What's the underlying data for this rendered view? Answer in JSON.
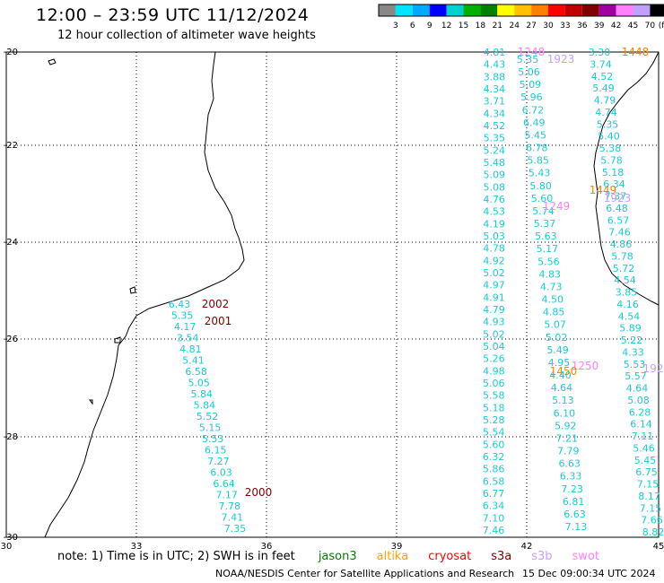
{
  "title": "12:00 – 23:59 UTC 11/12/2024",
  "subtitle": "12 hour collection of altimeter wave heights",
  "legend": {
    "unit": "(ft)",
    "ticks": [
      "3",
      "6",
      "9",
      "12",
      "15",
      "18",
      "21",
      "24",
      "27",
      "30",
      "33",
      "36",
      "39",
      "42",
      "45",
      "70"
    ],
    "colors": [
      "#888888",
      "#00e5ff",
      "#00aaff",
      "#0000ff",
      "#00d0d0",
      "#00b000",
      "#008000",
      "#ffff00",
      "#ffc000",
      "#ff8000",
      "#ff0000",
      "#c00000",
      "#800000",
      "#a000a0",
      "#ff80ff",
      "#c0a0ff",
      "#000000"
    ]
  },
  "axes": {
    "x_ticks": [
      "30",
      "33",
      "36",
      "39",
      "42",
      "45"
    ],
    "y_ticks": [
      "-20",
      "-22",
      "-24",
      "-26",
      "-28",
      "-30"
    ]
  },
  "track_left": {
    "times": [
      {
        "label": "2002",
        "color": "#800000"
      },
      {
        "label": "2001",
        "color": "#800000"
      },
      {
        "label": "2000",
        "color": "#800000"
      }
    ],
    "values": [
      "6.43",
      "5.35",
      "4.17",
      "3.54",
      "4.81",
      "5.41",
      "6.58",
      "5.05",
      "5.84",
      "5.84",
      "5.52",
      "5.15",
      "5.53",
      "6.15",
      "7.27",
      "6.03",
      "6.64",
      "7.17",
      "7.78",
      "7.41",
      "7.35"
    ]
  },
  "track_right": {
    "times": [
      {
        "label": "1248",
        "color": "#ff80ff"
      },
      {
        "label": "1249",
        "color": "#ff80ff"
      },
      {
        "label": "1250",
        "color": "#ff80ff"
      },
      {
        "label": "1448",
        "color": "#ff8000"
      },
      {
        "label": "1449",
        "color": "#ff8000"
      },
      {
        "label": "1450",
        "color": "#ff8000"
      },
      {
        "label": "1923",
        "color": "#c0a0ff"
      },
      {
        "label": "1923",
        "color": "#c0a0ff"
      },
      {
        "label": "192",
        "color": "#c0a0ff"
      }
    ],
    "col_a": [
      "4.81",
      "4.43",
      "3.88",
      "4.34",
      "3.71",
      "4.34",
      "4.52",
      "5.35",
      "5.24",
      "5.48",
      "5.09",
      "5.08",
      "4.76",
      "4.53",
      "4.19",
      "5.03",
      "4.78",
      "4.92",
      "5.02",
      "4.97",
      "4.91",
      "4.79",
      "4.93",
      "5.02",
      "5.04",
      "5.26",
      "4.98",
      "5.06",
      "5.58",
      "5.18",
      "5.28",
      "5.54",
      "5.60",
      "6.32",
      "5.86",
      "6.58",
      "6.77",
      "6.34",
      "7.10",
      "7.46"
    ],
    "col_b": [
      "5.35",
      "5.06",
      "5.09",
      "5.96",
      "6.72",
      "6.49",
      "5.45",
      "6.78",
      "5.85",
      "5.43",
      "5.80",
      "5.60",
      "5.74",
      "5.37",
      "5.63",
      "5.17",
      "5.56",
      "4.83",
      "4.73",
      "4.50",
      "4.85",
      "5.07",
      "5.02",
      "5.49",
      "4.95",
      "4.40",
      "4.64",
      "5.13",
      "6.10",
      "5.92",
      "7.21",
      "7.79",
      "6.63",
      "6.33",
      "7.23",
      "6.81",
      "6.63",
      "7.13"
    ],
    "col_c": [
      "3.30",
      "3.74",
      "4.52",
      "5.49",
      "4.79",
      "4.74",
      "5.35",
      "5.40",
      "5.38",
      "5.78",
      "5.18",
      "6.34",
      "7.37",
      "6.48",
      "6.57",
      "7.46",
      "4.86",
      "5.78",
      "5.72",
      "4.54",
      "3.85",
      "4.16",
      "4.54",
      "5.89",
      "5.22",
      "4.33",
      "5.53",
      "5.57",
      "4.64",
      "5.08",
      "6.28",
      "6.14",
      "7.11",
      "5.46",
      "5.45",
      "6.75",
      "7.15",
      "8.17",
      "7.15",
      "7.66",
      "8.82"
    ]
  },
  "note": {
    "prefix": "note:  1) Time is in UTC;  2) SWH is in feet",
    "sats": [
      {
        "name": "jason3",
        "color": "#008000"
      },
      {
        "name": "altika",
        "color": "#ffa000"
      },
      {
        "name": "cryosat",
        "color": "#ff0000"
      },
      {
        "name": "s3a",
        "color": "#800000"
      },
      {
        "name": "s3b",
        "color": "#c0a0ff"
      },
      {
        "name": "swot",
        "color": "#ff80ff"
      }
    ]
  },
  "footer": "NOAA/NESDIS Center for Satellite Applications and Research",
  "footer_time": "15 Dec 09:00:34 UTC 2024"
}
